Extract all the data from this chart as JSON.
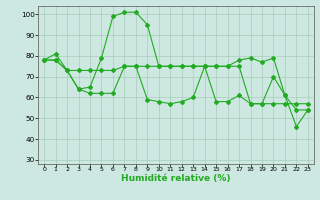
{
  "xlabel": "Humidité relative (%)",
  "background_color": "#cce8e0",
  "grid_color": "#aaccbb",
  "line_color": "#22aa22",
  "xlim": [
    -0.5,
    23.5
  ],
  "ylim": [
    28,
    104
  ],
  "yticks": [
    30,
    40,
    50,
    60,
    70,
    80,
    90,
    100
  ],
  "xticks": [
    0,
    1,
    2,
    3,
    4,
    5,
    6,
    7,
    8,
    9,
    10,
    11,
    12,
    13,
    14,
    15,
    16,
    17,
    18,
    19,
    20,
    21,
    22,
    23
  ],
  "series": [
    [
      78,
      81,
      73,
      64,
      65,
      79,
      99,
      101,
      101,
      95,
      75,
      75,
      75,
      75,
      75,
      75,
      75,
      78,
      79,
      77,
      79,
      61,
      54,
      54
    ],
    [
      78,
      78,
      73,
      64,
      62,
      62,
      62,
      75,
      75,
      59,
      58,
      57,
      58,
      60,
      75,
      58,
      58,
      61,
      57,
      57,
      70,
      61,
      46,
      54
    ],
    [
      78,
      78,
      73,
      73,
      73,
      73,
      73,
      75,
      75,
      75,
      75,
      75,
      75,
      75,
      75,
      75,
      75,
      75,
      57,
      57,
      57,
      57,
      57,
      57
    ]
  ]
}
